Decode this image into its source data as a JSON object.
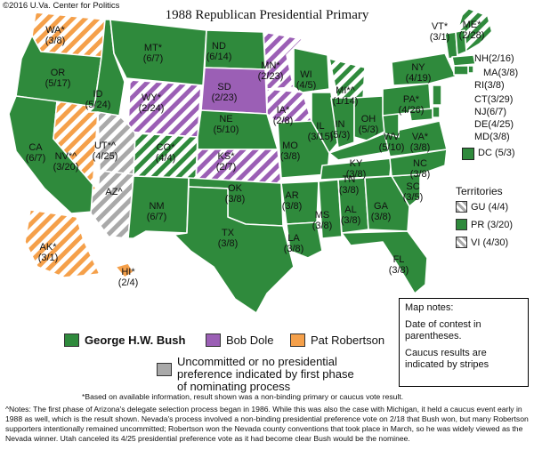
{
  "copyright": "©2016 U.Va. Center for Politics",
  "title": "1988 Republican Presidential Primary",
  "colors": {
    "bush": "#2f8a3c",
    "dole": "#9b5fb5",
    "robertson": "#f5a04a",
    "uncommitted": "#a9a9a9"
  },
  "states": [
    {
      "abbr": "WA*",
      "date": "(3/8)",
      "winner": "robertson",
      "caucus": true
    },
    {
      "abbr": "OR",
      "date": "(5/17)",
      "winner": "bush",
      "caucus": false
    },
    {
      "abbr": "CA",
      "date": "(6/7)",
      "winner": "bush",
      "caucus": false
    },
    {
      "abbr": "ID",
      "date": "(5/24)",
      "winner": "bush",
      "caucus": false
    },
    {
      "abbr": "NV*^",
      "date": "(3/20)",
      "winner": "robertson",
      "caucus": true
    },
    {
      "abbr": "MT*",
      "date": "(6/7)",
      "winner": "bush",
      "caucus": false
    },
    {
      "abbr": "WY*",
      "date": "(2/24)",
      "winner": "dole",
      "caucus": true
    },
    {
      "abbr": "UT*^",
      "date": "(4/25)",
      "winner": "uncommitted",
      "caucus": true
    },
    {
      "abbr": "AZ^",
      "date": "",
      "winner": "uncommitted",
      "caucus": true
    },
    {
      "abbr": "CO*",
      "date": "(4/4)",
      "winner": "bush",
      "caucus": true
    },
    {
      "abbr": "NM",
      "date": "(6/7)",
      "winner": "bush",
      "caucus": false
    },
    {
      "abbr": "ND",
      "date": "(6/14)",
      "winner": "bush",
      "caucus": false
    },
    {
      "abbr": "SD",
      "date": "(2/23)",
      "winner": "dole",
      "caucus": false
    },
    {
      "abbr": "NE",
      "date": "(5/10)",
      "winner": "bush",
      "caucus": false
    },
    {
      "abbr": "KS*",
      "date": "(2/7)",
      "winner": "dole",
      "caucus": true
    },
    {
      "abbr": "OK",
      "date": "(3/8)",
      "winner": "bush",
      "caucus": false
    },
    {
      "abbr": "TX",
      "date": "(3/8)",
      "winner": "bush",
      "caucus": false
    },
    {
      "abbr": "MN*",
      "date": "(2/23)",
      "winner": "dole",
      "caucus": true
    },
    {
      "abbr": "IA*",
      "date": "(2/8)",
      "winner": "dole",
      "caucus": true
    },
    {
      "abbr": "MO",
      "date": "(3/8)",
      "winner": "bush",
      "caucus": false
    },
    {
      "abbr": "AR",
      "date": "(3/8)",
      "winner": "bush",
      "caucus": false
    },
    {
      "abbr": "LA",
      "date": "(3/8)",
      "winner": "bush",
      "caucus": false
    },
    {
      "abbr": "WI",
      "date": "(4/5)",
      "winner": "bush",
      "caucus": false
    },
    {
      "abbr": "IL",
      "date": "(3/15)",
      "winner": "bush",
      "caucus": false
    },
    {
      "abbr": "MI*^",
      "date": "(1/14)",
      "winner": "bush",
      "caucus": true
    },
    {
      "abbr": "IN",
      "date": "(5/3)",
      "winner": "bush",
      "caucus": false
    },
    {
      "abbr": "OH",
      "date": "(5/3)",
      "winner": "bush",
      "caucus": false
    },
    {
      "abbr": "KY",
      "date": "(3/8)",
      "winner": "bush",
      "caucus": false
    },
    {
      "abbr": "TN",
      "date": "(3/8)",
      "winner": "bush",
      "caucus": false
    },
    {
      "abbr": "MS",
      "date": "(3/8)",
      "winner": "bush",
      "caucus": false
    },
    {
      "abbr": "AL",
      "date": "(3/8)",
      "winner": "bush",
      "caucus": false
    },
    {
      "abbr": "GA",
      "date": "(3/8)",
      "winner": "bush",
      "caucus": false
    },
    {
      "abbr": "FL",
      "date": "(3/8)",
      "winner": "bush",
      "caucus": false
    },
    {
      "abbr": "SC",
      "date": "(3/5)",
      "winner": "bush",
      "caucus": false
    },
    {
      "abbr": "NC",
      "date": "(3/8)",
      "winner": "bush",
      "caucus": false
    },
    {
      "abbr": "VA*",
      "date": "(3/8)",
      "winner": "bush",
      "caucus": false
    },
    {
      "abbr": "WV",
      "date": "(5/10)",
      "winner": "bush",
      "caucus": false
    },
    {
      "abbr": "PA*",
      "date": "(4/26)",
      "winner": "bush",
      "caucus": false
    },
    {
      "abbr": "NY",
      "date": "(4/19)",
      "winner": "bush",
      "caucus": false
    },
    {
      "abbr": "VT*",
      "date": "(3/1)",
      "winner": "bush",
      "caucus": false
    },
    {
      "abbr": "ME*",
      "date": "(2/28)",
      "winner": "bush",
      "caucus": true
    },
    {
      "abbr": "AK*",
      "date": "(3/1)",
      "winner": "robertson",
      "caucus": true
    },
    {
      "abbr": "HI*",
      "date": "(2/4)",
      "winner": "robertson",
      "caucus": false
    }
  ],
  "northeast_labels": [
    {
      "abbr": "NH",
      "date": "(2/16)"
    },
    {
      "abbr": "MA",
      "date": "(3/8)"
    },
    {
      "abbr": "RI",
      "date": "(3/8)"
    },
    {
      "abbr": "CT",
      "date": "(3/29)"
    },
    {
      "abbr": "NJ",
      "date": "(6/7)"
    },
    {
      "abbr": "DE",
      "date": "(4/25)"
    },
    {
      "abbr": "MD",
      "date": "(3/8)"
    }
  ],
  "dc": {
    "abbr": "DC",
    "date": "(5/3)"
  },
  "territories": {
    "title": "Territories",
    "items": [
      {
        "abbr": "GU",
        "date": "(4/4)",
        "winner": "uncommitted",
        "caucus": true
      },
      {
        "abbr": "PR",
        "date": "(3/20)",
        "winner": "bush",
        "caucus": false
      },
      {
        "abbr": "VI",
        "date": "(4/30)",
        "winner": "uncommitted",
        "caucus": true
      }
    ]
  },
  "legend": {
    "bush": "George H.W. Bush",
    "dole": "Bob Dole",
    "robertson": "Pat Robertson",
    "uncommitted_line1": "Uncommitted or no presidential",
    "uncommitted_line2": "preference indicated by first phase",
    "uncommitted_line3": "of nominating process"
  },
  "map_notes": {
    "title": "Map notes:",
    "note1": "Date of contest in parentheses.",
    "note2": "Caucus results are indicated by stripes"
  },
  "footnotes": {
    "star": "*Based on available information, result shown was a non-binding primary or caucus vote result.",
    "caret": "^Notes: The first phase of Arizona's delegate selection process began in 1986. While this was also the case with Michigan, it held a caucus event early in 1988 as well, which is the result shown. Nevada's process involved a non-binding presidential preference vote on 2/18 that Bush won, but many Robertson supporters intentionally remained uncommitted; Robertson won the Nevada county conventions that took place in March, so he was widely viewed as the Nevada winner. Utah canceled its 4/25 presidential preference vote as it had become clear Bush would be the nominee."
  }
}
